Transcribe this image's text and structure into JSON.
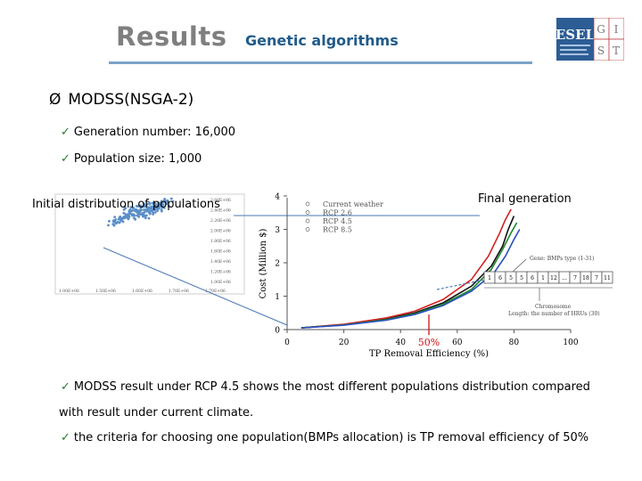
{
  "header": {
    "title": "Results",
    "subtitle": "Genetic algorithms",
    "logo": {
      "text": "ESEL",
      "letters": [
        "G",
        "I",
        "S",
        "T"
      ]
    }
  },
  "main": {
    "heading_marker": "Ø",
    "heading": "MODSS(NSGA-2)",
    "bullets": [
      "Generation number: 16,000",
      "Population size: 1,000"
    ],
    "initial_label": "Initial distribution of populations",
    "final_label": "Final generation",
    "result_bullets": [
      "MODSS result under RCP 4.5 shows the most different populations distribution compared",
      "with result under current climate.",
      "the criteria for choosing one population(BMPs allocation) is TP removal efficiency of 50%"
    ],
    "check_mark": "✓"
  },
  "chart_data": [
    {
      "type": "scatter",
      "series": [
        {
          "x": [
            1350000.0,
            1420000.0,
            1480000.0,
            1520000.0,
            1580000.0,
            1620000.0,
            1660000.0,
            1720000.0,
            1460000.0,
            1550000.0,
            1600000.0,
            1680000.0,
            1400000.0,
            1500000.0,
            1640000.0
          ],
          "y": [
            2280000.0,
            2350000.0,
            2400000.0,
            2450000.0,
            2500000.0,
            2550000.0,
            2580000.0,
            2630000.0,
            2470000.0,
            2420000.0,
            2530000.0,
            2600000.0,
            2320000.0,
            2490000.0,
            2560000.0
          ]
        }
      ],
      "x_ticks": [
        "1.00E+06",
        "1.50E+06",
        "1.60E+06",
        "1.70E+06",
        "1.70E+06"
      ],
      "y_ticks": [
        "2.60E+06",
        "2.40E+06",
        "2.20E+06",
        "2.00E+06",
        "1.80E+06",
        "1.60E+06",
        "1.40E+06",
        "1.20E+06",
        "1.00E+06"
      ],
      "colors": {
        "points": "#5b8fc8"
      }
    },
    {
      "type": "line",
      "xlabel": "TP Removal Efficiency (%)",
      "ylabel": "Cost (Million $)",
      "xlim": [
        0,
        100
      ],
      "ylim": [
        0,
        4
      ],
      "x_ticks": [
        0,
        20,
        40,
        60,
        80,
        100
      ],
      "y_ticks": [
        0,
        1,
        2,
        3,
        4
      ],
      "legend": [
        "Current weather",
        "RCP 2.6",
        "RCP 4.5",
        "RCP 8.5"
      ],
      "legend_position": "top-left",
      "series": [
        {
          "name": "Current weather",
          "color": "#111111",
          "x": [
            5,
            20,
            35,
            45,
            55,
            65,
            72,
            76,
            78,
            80
          ],
          "y": [
            0.05,
            0.15,
            0.32,
            0.5,
            0.8,
            1.3,
            1.9,
            2.5,
            3.0,
            3.4
          ]
        },
        {
          "name": "RCP 2.6",
          "color": "#d42020",
          "x": [
            5,
            20,
            35,
            45,
            55,
            65,
            71,
            75,
            77,
            79
          ],
          "y": [
            0.05,
            0.16,
            0.35,
            0.55,
            0.9,
            1.5,
            2.2,
            2.9,
            3.3,
            3.6
          ]
        },
        {
          "name": "RCP 4.5",
          "color": "#1e8a2e",
          "x": [
            5,
            20,
            35,
            45,
            55,
            65,
            72,
            76,
            79,
            81
          ],
          "y": [
            0.05,
            0.14,
            0.3,
            0.47,
            0.76,
            1.2,
            1.8,
            2.4,
            2.9,
            3.2
          ]
        },
        {
          "name": "RCP 8.5",
          "color": "#2a4fc0",
          "x": [
            5,
            20,
            35,
            45,
            55,
            65,
            73,
            77,
            80,
            82
          ],
          "y": [
            0.05,
            0.13,
            0.28,
            0.45,
            0.72,
            1.15,
            1.7,
            2.2,
            2.7,
            3.0
          ]
        }
      ],
      "annotation": {
        "x": 50,
        "label": "50%",
        "color": "#d01010"
      },
      "inset": {
        "gene_label": "Gene: BMPs type (1-31)",
        "genes": [
          "1",
          "6",
          "5",
          "5",
          "6",
          "1",
          "12",
          "...",
          "7",
          "18",
          "7",
          "11"
        ],
        "chromosome_label": "Chromosome",
        "length_label": "Length: the number of HRUs (30)"
      }
    }
  ]
}
